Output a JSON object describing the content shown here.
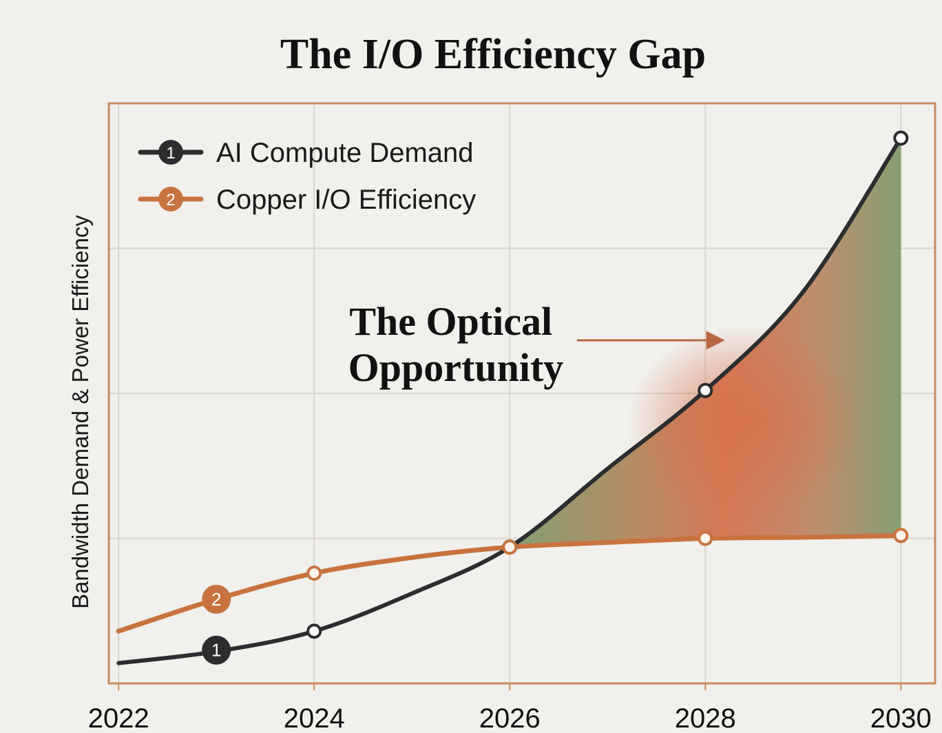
{
  "colors": {
    "background": "#f1f0ec",
    "frame": "#c98a60",
    "grid": "#d9d6cf",
    "demand": "#2b2d2f",
    "copper": "#c8733f",
    "gap_green": "#7f9a6d",
    "gap_orange": "#d5714c"
  },
  "chart_data": {
    "type": "line",
    "title": "The I/O Efficiency Gap",
    "xlabel": "",
    "ylabel": "Bandwidth Demand & Power Efficiency",
    "x": [
      2022,
      2023,
      2024,
      2025,
      2026,
      2027,
      2028,
      2029,
      2030
    ],
    "xticks": [
      "2022",
      "2024",
      "2026",
      "2028",
      "2030"
    ],
    "xlim": [
      2021.9,
      2030.35
    ],
    "ylim": [
      0,
      100
    ],
    "grid": true,
    "legend_position": "top-left",
    "series": [
      {
        "name": "AI Compute Demand",
        "marker_label": "1",
        "icon": "numbered-circle-icon",
        "color": "#2b2d2f",
        "values": [
          3.5,
          5.5,
          9,
          15.5,
          23.5,
          37,
          50.5,
          67.5,
          94
        ],
        "markers": [
          2024,
          2026,
          2028,
          2030
        ],
        "badge_x": 2023
      },
      {
        "name": "Copper I/O Efficiency",
        "marker_label": "2",
        "icon": "numbered-circle-icon",
        "color": "#c8733f",
        "values": [
          9,
          14.5,
          19,
          21.7,
          23.5,
          24.3,
          25,
          25.2,
          25.5
        ],
        "markers": [
          2024,
          2026,
          2028,
          2030
        ],
        "badge_x": 2023
      }
    ],
    "annotations": [
      {
        "text_lines": [
          "The Optical",
          "Opportunity"
        ],
        "points_to": "gap-area",
        "arrow_x": 2027.2,
        "arrow_y": 59
      }
    ]
  }
}
